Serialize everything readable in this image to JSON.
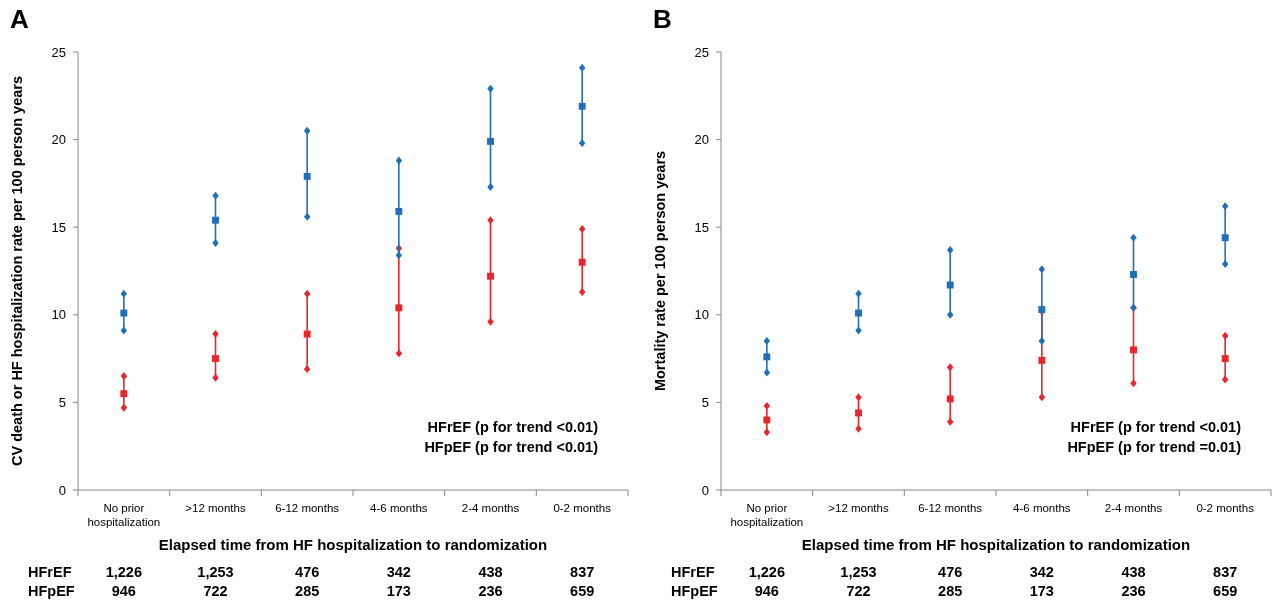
{
  "chart_data": [
    {
      "type": "scatter",
      "title": "A",
      "xlabel": "Elapsed time from HF hospitalization to randomization",
      "ylabel": "CV death or HF hospitalization rate per 100 person years",
      "categories": [
        "No prior hospitalization",
        ">12 months",
        "6-12 months",
        "4-6 months",
        "2-4 months",
        "0-2 months"
      ],
      "ylim": [
        0,
        25
      ],
      "yticks": [
        0,
        5,
        10,
        15,
        20,
        25
      ],
      "grid": false,
      "marker": "square",
      "series": [
        {
          "color": "#e8262b",
          "values": [
            5.5,
            7.5,
            8.9,
            10.4,
            12.2,
            13.0
          ],
          "errors": [
            [
              4.7,
              6.5
            ],
            [
              6.4,
              8.9
            ],
            [
              6.9,
              11.2
            ],
            [
              7.8,
              13.8
            ],
            [
              9.6,
              15.4
            ],
            [
              11.3,
              14.9
            ]
          ]
        },
        {
          "color": "#1f6fba",
          "values": [
            10.1,
            15.4,
            17.9,
            15.9,
            19.9,
            21.9
          ],
          "errors": [
            [
              9.1,
              11.2
            ],
            [
              14.1,
              16.8
            ],
            [
              15.6,
              20.5
            ],
            [
              13.4,
              18.8
            ],
            [
              17.3,
              22.9
            ],
            [
              19.8,
              24.1
            ]
          ]
        }
      ],
      "annotations": [
        "HFrEF (p for trend <0.01)",
        "HFpEF (p for trend <0.01)",
        "HFrEF",
        "1,226",
        "1,253",
        "476",
        "342",
        "438",
        "837",
        "HFpEF",
        "946",
        "722",
        "285",
        "173",
        "236",
        "659"
      ]
    },
    {
      "type": "scatter",
      "title": "B",
      "xlabel": "Elapsed time from HF hospitalization to randomization",
      "ylabel": "Mortality rate per 100 person years",
      "categories": [
        "No prior hospitalization",
        ">12 months",
        "6-12 months",
        "4-6 months",
        "2-4 months",
        "0-2 months"
      ],
      "ylim": [
        0,
        25
      ],
      "yticks": [
        0,
        5,
        10,
        15,
        20,
        25
      ],
      "grid": false,
      "marker": "square",
      "series": [
        {
          "color": "#e8262b",
          "values": [
            4.0,
            4.4,
            5.2,
            7.4,
            8.0,
            7.5
          ],
          "errors": [
            [
              3.3,
              4.8
            ],
            [
              3.5,
              5.3
            ],
            [
              3.9,
              7.0
            ],
            [
              5.3,
              10.2
            ],
            [
              6.1,
              10.4
            ],
            [
              6.3,
              8.8
            ]
          ]
        },
        {
          "color": "#1f6fba",
          "values": [
            7.6,
            10.1,
            11.7,
            10.3,
            12.3,
            14.4
          ],
          "errors": [
            [
              6.7,
              8.5
            ],
            [
              9.1,
              11.2
            ],
            [
              10.0,
              13.7
            ],
            [
              8.5,
              12.6
            ],
            [
              10.4,
              14.4
            ],
            [
              12.9,
              16.2
            ]
          ]
        }
      ],
      "annotations": [
        "HFrEF (p for trend <0.01)",
        "HFpEF (p for trend =0.01)",
        "HFrEF",
        "1,226",
        "1,253",
        "476",
        "342",
        "438",
        "837",
        "HFpEF",
        "946",
        "722",
        "285",
        "173",
        "236",
        "659"
      ]
    }
  ]
}
